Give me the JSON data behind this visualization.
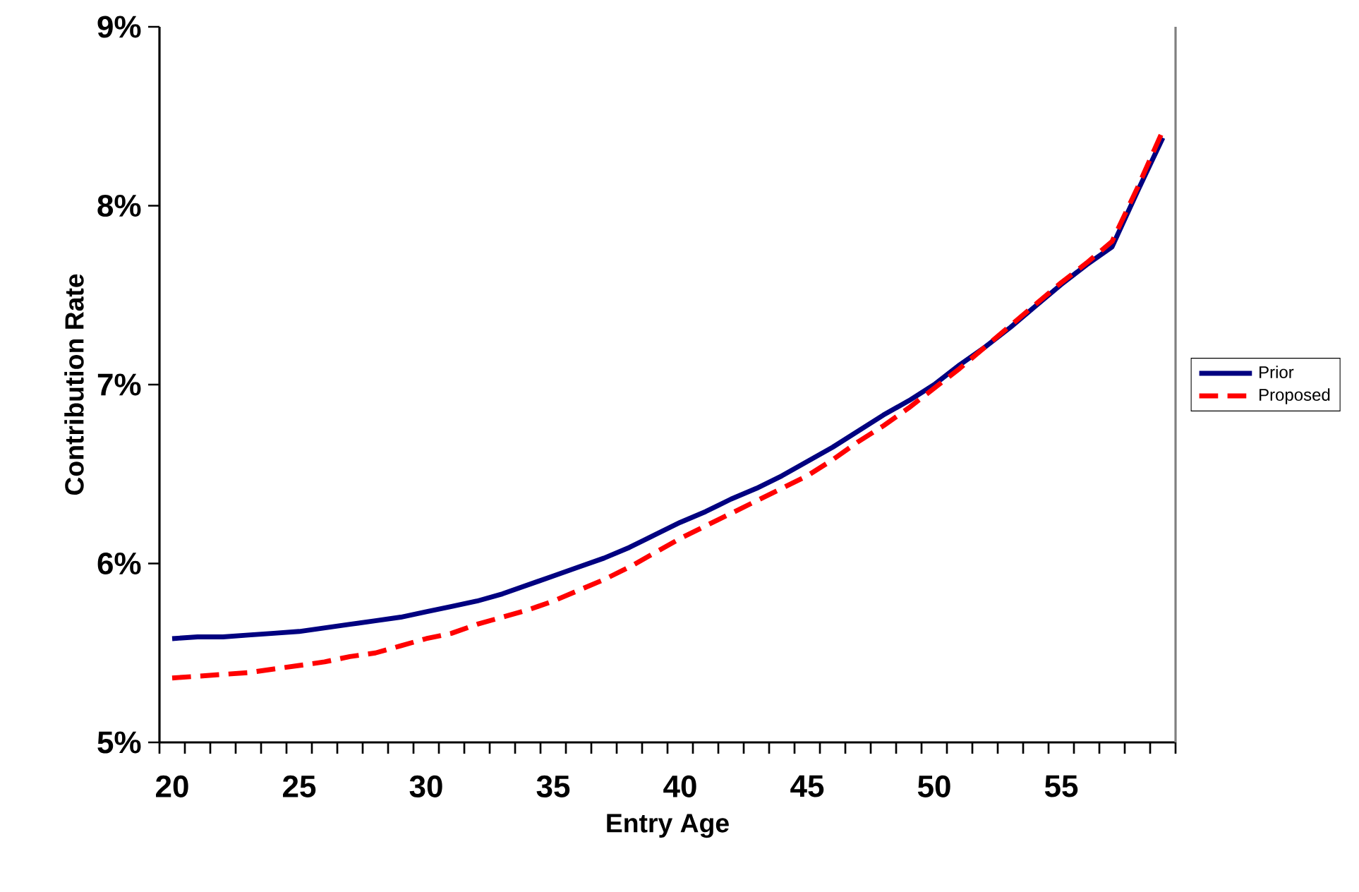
{
  "chart_data": {
    "type": "line",
    "xlabel": "Entry Age",
    "ylabel": "Contribution Rate",
    "categories": [
      "20",
      null,
      null,
      null,
      null,
      "25",
      null,
      null,
      null,
      null,
      "30",
      null,
      null,
      null,
      null,
      "35",
      null,
      null,
      null,
      null,
      "40",
      null,
      null,
      null,
      null,
      "45",
      null,
      null,
      null,
      null,
      "50",
      null,
      null,
      null,
      null,
      "55",
      null,
      null,
      null,
      null
    ],
    "ylim": [
      5,
      9
    ],
    "yticks": [
      {
        "value": 5,
        "label": "5%"
      },
      {
        "value": 6,
        "label": "6%"
      },
      {
        "value": 7,
        "label": "7%"
      },
      {
        "value": 8,
        "label": "8%"
      },
      {
        "value": 9,
        "label": "9%"
      }
    ],
    "grid": false,
    "legend": "right",
    "marker": "none",
    "series": [
      {
        "name": "Prior",
        "color": "#000080",
        "line_style": "solid",
        "values": [
          5.58,
          5.59,
          5.59,
          5.6,
          5.61,
          5.62,
          5.64,
          5.66,
          5.68,
          5.7,
          5.73,
          5.76,
          5.79,
          5.83,
          5.88,
          5.93,
          5.98,
          6.03,
          6.09,
          6.16,
          6.23,
          6.29,
          6.36,
          6.42,
          6.49,
          6.57,
          6.65,
          6.74,
          6.83,
          6.91,
          7.0,
          7.11,
          7.21,
          7.32,
          7.44,
          7.56,
          7.67,
          7.77,
          8.08,
          8.38
        ]
      },
      {
        "name": "Proposed",
        "color": "#ff0000",
        "line_style": "dashed",
        "values": [
          5.36,
          5.37,
          5.38,
          5.39,
          5.41,
          5.43,
          5.45,
          5.48,
          5.5,
          5.54,
          5.58,
          5.61,
          5.66,
          5.7,
          5.74,
          5.79,
          5.85,
          5.91,
          5.98,
          6.06,
          6.14,
          6.21,
          6.28,
          6.35,
          6.42,
          6.49,
          6.58,
          6.68,
          6.77,
          6.87,
          6.98,
          7.09,
          7.21,
          7.33,
          7.45,
          7.57,
          7.68,
          7.8,
          8.1,
          8.42
        ]
      }
    ]
  }
}
